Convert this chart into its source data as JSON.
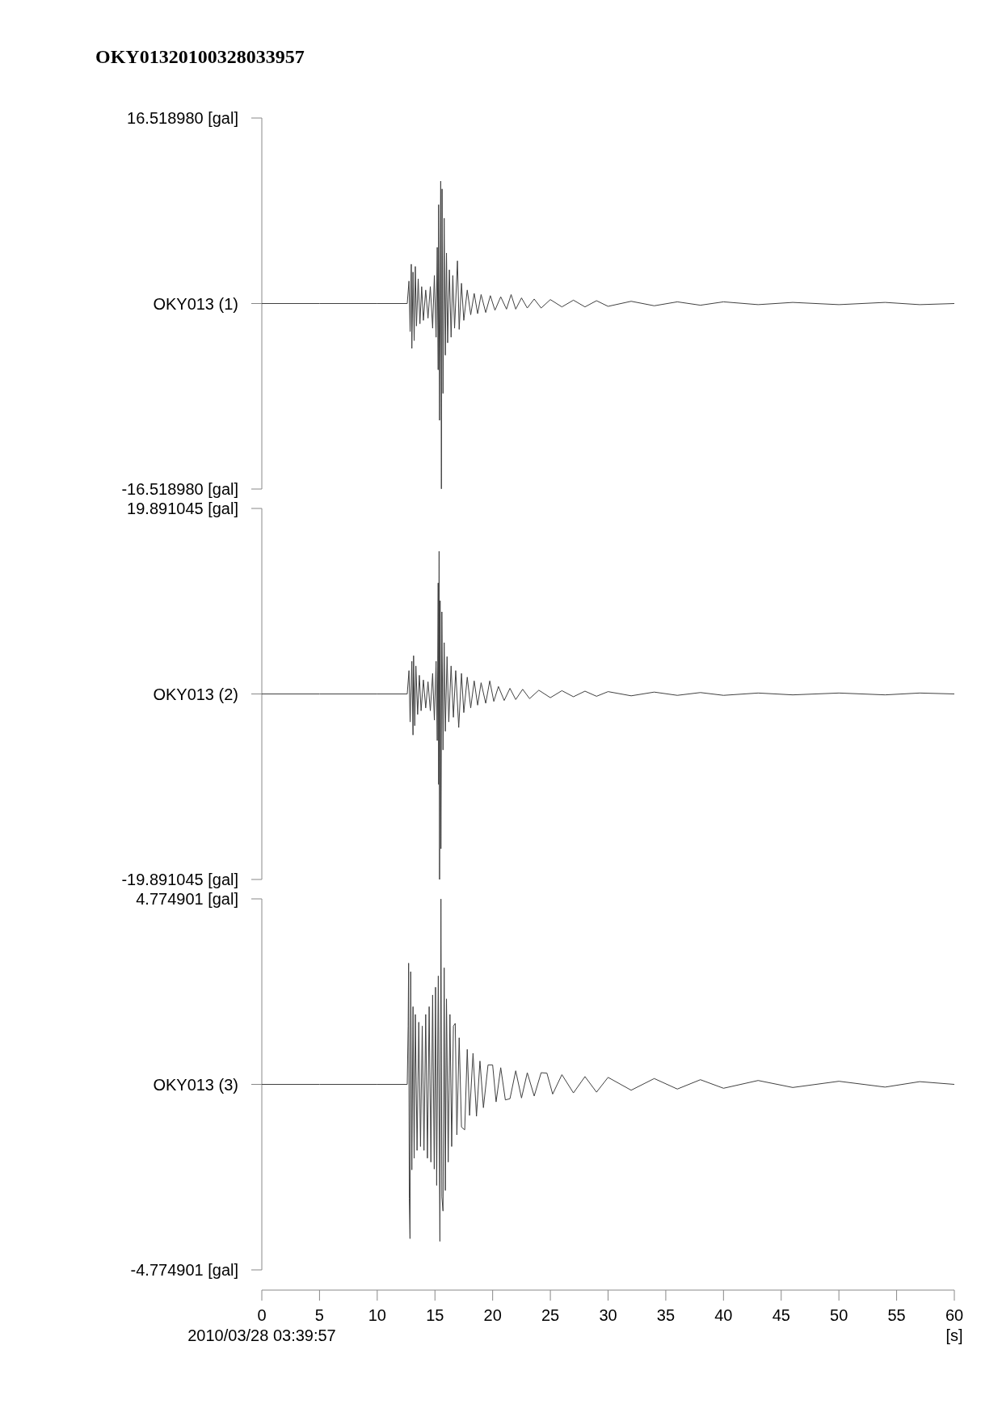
{
  "chart_data": [
    {
      "type": "line",
      "title": "OKY01320100328033957",
      "xlim": [
        0,
        60
      ],
      "ylim": [
        -16.51898,
        16.51898
      ],
      "yticks": [
        {
          "value": 16.51898,
          "label": "16.518980 [gal]"
        },
        {
          "value": 0,
          "label": "OKY013 (1)"
        },
        {
          "value": -16.51898,
          "label": "-16.518980 [gal]"
        }
      ],
      "tick_labels": "y",
      "series": [
        {
          "color": "#404040",
          "x": [
            0,
            5,
            10,
            12.6,
            12.75,
            12.85,
            12.95,
            13.0,
            13.1,
            13.2,
            13.3,
            13.4,
            13.55,
            13.7,
            13.85,
            14.0,
            14.2,
            14.4,
            14.6,
            14.8,
            14.95,
            15.1,
            15.2,
            15.28,
            15.32,
            15.4,
            15.5,
            15.56,
            15.62,
            15.7,
            15.8,
            15.9,
            16.0,
            16.1,
            16.25,
            16.4,
            16.55,
            16.7,
            16.95,
            17.1,
            17.3,
            17.5,
            17.8,
            18.1,
            18.4,
            18.7,
            19.0,
            19.4,
            19.8,
            20.2,
            20.7,
            21.2,
            21.6,
            22.0,
            22.5,
            23.0,
            23.6,
            24.2,
            25,
            26,
            27,
            28,
            29,
            30,
            32,
            34,
            36,
            38,
            40,
            43,
            46,
            50,
            54,
            57,
            60
          ],
          "values": [
            0,
            0,
            0,
            0,
            2.0,
            -2.5,
            3.5,
            -4.0,
            2.8,
            -3.3,
            3.3,
            -2.0,
            2.2,
            -1.8,
            1.5,
            -1.5,
            1.2,
            -1.3,
            1.5,
            -2.2,
            2.5,
            -3.0,
            5.0,
            -5.9,
            8.8,
            -10.4,
            10.9,
            -16.5,
            10.2,
            -8.0,
            7.6,
            -4.6,
            4.5,
            -3.5,
            3.0,
            -3.0,
            2.5,
            -2.2,
            3.8,
            -2.3,
            1.8,
            -1.5,
            1.2,
            -1.0,
            0.9,
            -0.9,
            0.8,
            -0.8,
            0.7,
            -0.6,
            0.6,
            -0.5,
            0.8,
            -0.5,
            0.5,
            -0.4,
            0.4,
            -0.4,
            0.35,
            -0.3,
            0.3,
            -0.3,
            0.25,
            -0.25,
            0.2,
            -0.2,
            0.15,
            -0.15,
            0.15,
            -0.1,
            0.1,
            -0.1,
            0.1,
            -0.1,
            0
          ]
        }
      ]
    },
    {
      "type": "line",
      "xlim": [
        0,
        60
      ],
      "ylim": [
        -19.891045,
        19.891045
      ],
      "yticks": [
        {
          "value": 19.891045,
          "label": "19.891045 [gal]"
        },
        {
          "value": 0,
          "label": "OKY013 (2)"
        },
        {
          "value": -19.891045,
          "label": "-19.891045 [gal]"
        }
      ],
      "tick_labels": "y",
      "series": [
        {
          "color": "#404040",
          "x": [
            0,
            5,
            10,
            12.6,
            12.75,
            12.85,
            13.0,
            13.1,
            13.15,
            13.25,
            13.35,
            13.5,
            13.65,
            13.8,
            14.0,
            14.2,
            14.4,
            14.6,
            14.8,
            14.95,
            15.1,
            15.2,
            15.28,
            15.32,
            15.36,
            15.4,
            15.45,
            15.52,
            15.6,
            15.7,
            15.8,
            15.9,
            16.05,
            16.2,
            16.4,
            16.6,
            16.8,
            17.06,
            17.3,
            17.5,
            17.8,
            18.1,
            18.4,
            18.7,
            19.0,
            19.4,
            19.75,
            20.1,
            20.5,
            21.0,
            21.5,
            22.0,
            22.6,
            23.2,
            24,
            25,
            26,
            27,
            28,
            29,
            30,
            32,
            34,
            36,
            38,
            40,
            43,
            46,
            50,
            54,
            57,
            60
          ],
          "values": [
            0,
            0,
            0,
            0,
            2.5,
            -3.0,
            3.5,
            -4.4,
            4.1,
            -3.4,
            3.0,
            -2.2,
            2.0,
            -1.8,
            1.5,
            -1.5,
            1.3,
            -1.8,
            2.2,
            -2.8,
            3.5,
            -5.0,
            11.9,
            -9.7,
            15.3,
            -19.89,
            10.0,
            -16.6,
            8.8,
            -6.0,
            5.5,
            -4.0,
            4.0,
            -3.0,
            3.0,
            -2.5,
            2.5,
            -3.6,
            2.2,
            -2.0,
            1.8,
            -1.5,
            1.4,
            -1.2,
            1.2,
            -1.0,
            1.4,
            -0.8,
            0.8,
            -0.7,
            0.6,
            -0.6,
            0.5,
            -0.5,
            0.4,
            -0.4,
            0.35,
            -0.3,
            0.3,
            -0.25,
            0.25,
            -0.2,
            0.2,
            -0.15,
            0.15,
            -0.15,
            0.1,
            -0.1,
            0.1,
            -0.1,
            0.1,
            0
          ]
        }
      ]
    },
    {
      "type": "line",
      "xlim": [
        0,
        60
      ],
      "ylim": [
        -4.774901,
        4.774901
      ],
      "yticks": [
        {
          "value": 4.774901,
          "label": "4.774901 [gal]"
        },
        {
          "value": 0,
          "label": "OKY013 (3)"
        },
        {
          "value": -4.774901,
          "label": "-4.774901 [gal]"
        }
      ],
      "xticks": [
        0,
        5,
        10,
        15,
        20,
        25,
        30,
        35,
        40,
        45,
        50,
        55,
        60
      ],
      "xlabel": "[s]",
      "annotations": [
        "2010/03/28 03:39:57"
      ],
      "series": [
        {
          "color": "#404040",
          "x": [
            0,
            5,
            10,
            12.6,
            12.68,
            12.72,
            12.78,
            12.84,
            12.9,
            13.0,
            13.1,
            13.2,
            13.3,
            13.45,
            13.6,
            13.75,
            13.9,
            14.05,
            14.2,
            14.35,
            14.5,
            14.65,
            14.8,
            14.94,
            15.05,
            15.15,
            15.29,
            15.43,
            15.52,
            15.6,
            15.7,
            15.8,
            15.9,
            16.0,
            16.15,
            16.3,
            16.45,
            16.6,
            16.76,
            16.9,
            17.1,
            17.3,
            17.58,
            17.8,
            18.0,
            18.3,
            18.6,
            18.9,
            19.2,
            19.6,
            20.0,
            20.3,
            20.7,
            21.1,
            21.5,
            22,
            22.5,
            23,
            23.6,
            24.2,
            24.7,
            25.2,
            26,
            27,
            28,
            29,
            30,
            32,
            34,
            36,
            38,
            40,
            43,
            46,
            50,
            54,
            57,
            60
          ],
          "values": [
            0,
            0,
            0,
            0,
            1.5,
            3.12,
            -2.94,
            -3.97,
            2.9,
            -2.2,
            2.0,
            -1.9,
            1.8,
            -1.7,
            1.6,
            -1.6,
            1.5,
            -1.7,
            1.8,
            -1.9,
            2.0,
            -2.0,
            2.3,
            -2.18,
            2.5,
            -2.6,
            2.79,
            -4.04,
            4.77,
            -2.9,
            -3.26,
            3.0,
            -2.73,
            2.2,
            -2.0,
            1.8,
            -1.6,
            1.5,
            1.57,
            -1.3,
            1.2,
            -1.1,
            -1.17,
            0.9,
            -0.8,
            0.8,
            -0.82,
            0.6,
            -0.6,
            0.5,
            0.5,
            -0.45,
            0.43,
            -0.4,
            -0.37,
            0.35,
            -0.35,
            0.3,
            -0.3,
            0.3,
            0.29,
            -0.25,
            0.25,
            -0.22,
            0.2,
            -0.2,
            0.18,
            -0.15,
            0.15,
            -0.12,
            0.12,
            -0.1,
            0.1,
            -0.08,
            0.08,
            -0.07,
            0.07,
            0
          ]
        }
      ]
    }
  ]
}
